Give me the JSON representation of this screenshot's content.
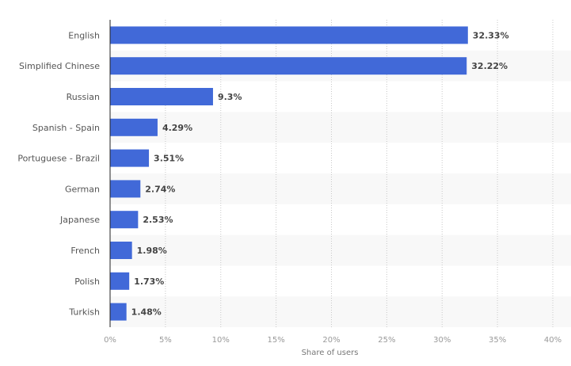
{
  "chart_data": {
    "type": "bar",
    "orientation": "horizontal",
    "categories": [
      "English",
      "Simplified Chinese",
      "Russian",
      "Spanish - Spain",
      "Portuguese - Brazil",
      "German",
      "Japanese",
      "French",
      "Polish",
      "Turkish"
    ],
    "values": [
      32.33,
      32.22,
      9.3,
      4.29,
      3.51,
      2.74,
      2.53,
      1.98,
      1.73,
      1.48
    ],
    "data_labels": [
      "32.33%",
      "32.22%",
      "9.3%",
      "4.29%",
      "3.51%",
      "2.74%",
      "2.53%",
      "1.98%",
      "1.73%",
      "1.48%"
    ],
    "xlabel": "Share of users",
    "ylabel": "",
    "xlim": [
      0,
      40
    ],
    "ticks": [
      0,
      5,
      10,
      15,
      20,
      25,
      30,
      35,
      40
    ],
    "tick_labels": [
      "0%",
      "5%",
      "10%",
      "15%",
      "20%",
      "25%",
      "30%",
      "35%",
      "40%"
    ],
    "grid": "vertical dotted",
    "alternating_row_bands": true,
    "colors": {
      "bar": "#4169d8",
      "band": "#f8f8f8",
      "grid": "#c8c8c8",
      "axis": "#222222"
    }
  }
}
